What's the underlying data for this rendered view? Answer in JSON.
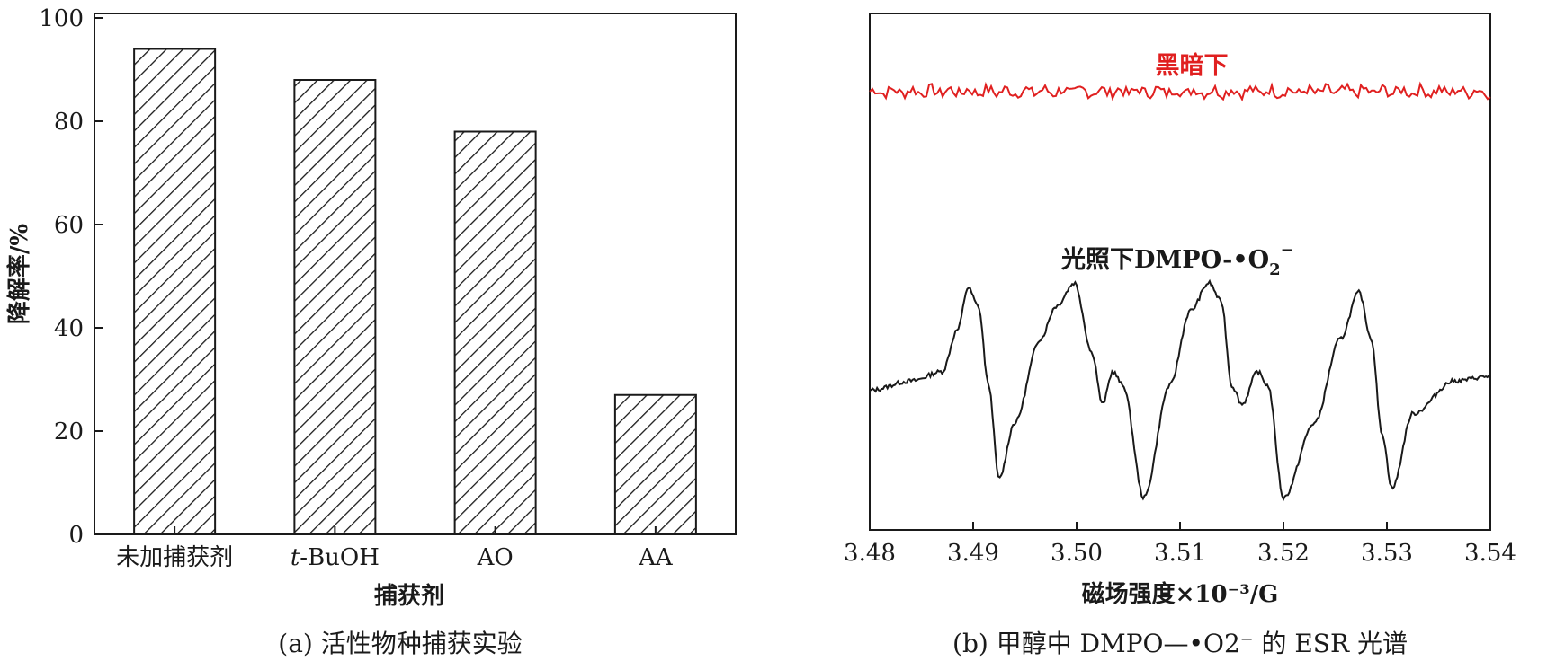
{
  "chart_data": [
    {
      "type": "bar",
      "panel": "a",
      "caption": "(a) 活性物种捕获实验",
      "xlabel": "捕获剂",
      "ylabel": "降解率/%",
      "categories": [
        "未加捕获剂",
        "t-BuOH",
        "AO",
        "AA"
      ],
      "values": [
        94,
        88,
        78,
        27
      ],
      "ylim": [
        0,
        100
      ],
      "yticks": [
        "0",
        "20",
        "40",
        "60",
        "80",
        "100"
      ],
      "bar_fill": "hatched"
    },
    {
      "type": "line",
      "panel": "b",
      "caption": "(b) 甲醇中 DMPO—•O2⁻ 的 ESR 光谱",
      "xlabel": "磁场强度×10⁻³/G",
      "ylabel": "",
      "xlim": [
        3.48,
        3.54
      ],
      "xticks": [
        "3.48",
        "3.49",
        "3.50",
        "3.51",
        "3.52",
        "3.53",
        "3.54"
      ],
      "series": [
        {
          "name": "黑暗下",
          "color": "#e02020",
          "x": [
            3.48,
            3.49,
            3.5,
            3.51,
            3.52,
            3.53,
            3.54
          ],
          "y": [
            91,
            91,
            91,
            91,
            91,
            91,
            91
          ]
        },
        {
          "name": "光照下DMPO-•O2⁻",
          "color": "#1a1a1a",
          "x": [
            3.48,
            3.484,
            3.487,
            3.4885,
            3.4895,
            3.4905,
            3.4915,
            3.4925,
            3.494,
            3.4965,
            3.498,
            3.4998,
            3.5015,
            3.5025,
            3.5035,
            3.5045,
            3.5065,
            3.509,
            3.511,
            3.5128,
            3.514,
            3.515,
            3.516,
            3.5175,
            3.5185,
            3.52,
            3.523,
            3.5255,
            3.5273,
            3.5285,
            3.5295,
            3.5305,
            3.5325,
            3.5365,
            3.54
          ],
          "y": [
            27,
            29,
            31,
            40,
            49,
            45,
            28,
            8,
            20,
            38,
            45,
            50,
            35,
            24,
            31,
            28,
            4,
            28,
            44,
            50,
            46,
            28,
            24,
            31,
            28,
            4,
            20,
            38,
            48,
            38,
            18,
            6,
            22,
            29,
            30
          ]
        }
      ],
      "annotations": [
        "黑暗下",
        "光照下DMPO-•O2⁻"
      ]
    }
  ]
}
